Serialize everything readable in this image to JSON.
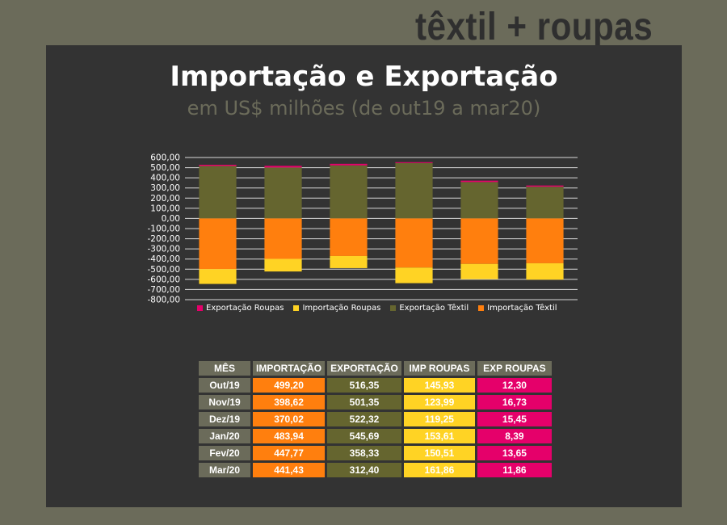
{
  "brand": "têxtil + roupas",
  "title": "Importação e Exportação",
  "subtitle": "em US$ milhões (de out19 a mar20)",
  "colors": {
    "exp_roupas": "#e5006a",
    "imp_roupas": "#ffd324",
    "exp_textil": "#65652f",
    "imp_textil": "#ff7f0e"
  },
  "chart_data": {
    "type": "bar",
    "stacked": true,
    "categories": [
      "Out/19",
      "Nov/19",
      "Dez/19",
      "Jan/20",
      "Fev/20",
      "Mar/20"
    ],
    "series": [
      {
        "name": "Exportação Roupas",
        "values": [
          12.3,
          16.73,
          15.45,
          8.39,
          13.65,
          11.86
        ]
      },
      {
        "name": "Importação Roupas",
        "values": [
          -145.93,
          -123.99,
          -119.25,
          -153.61,
          -150.51,
          -161.86
        ]
      },
      {
        "name": "Exportação Têxtil",
        "values": [
          516.35,
          501.35,
          522.32,
          545.69,
          358.33,
          312.4
        ]
      },
      {
        "name": "Importação Têxtil",
        "values": [
          -499.2,
          -398.62,
          -370.02,
          -483.94,
          -447.77,
          -441.43
        ]
      }
    ],
    "ylim": [
      -800,
      600
    ],
    "yticks": [
      "600,00",
      "500,00",
      "400,00",
      "300,00",
      "200,00",
      "100,00",
      "0,00",
      "-100,00",
      "-200,00",
      "-300,00",
      "-400,00",
      "-500,00",
      "-600,00",
      "-700,00",
      "-800,00"
    ],
    "grid": true,
    "legend": "bottom"
  },
  "table": {
    "headers": [
      "MÊS",
      "IMPORTAÇÃO",
      "EXPORTAÇÃO",
      "IMP ROUPAS",
      "EXP ROUPAS"
    ],
    "rows": [
      [
        "Out/19",
        "499,20",
        "516,35",
        "145,93",
        "12,30"
      ],
      [
        "Nov/19",
        "398,62",
        "501,35",
        "123,99",
        "16,73"
      ],
      [
        "Dez/19",
        "370,02",
        "522,32",
        "119,25",
        "15,45"
      ],
      [
        "Jan/20",
        "483,94",
        "545,69",
        "153,61",
        "8,39"
      ],
      [
        "Fev/20",
        "447,77",
        "358,33",
        "150,51",
        "13,65"
      ],
      [
        "Mar/20",
        "441,43",
        "312,40",
        "161,86",
        "11,86"
      ]
    ]
  }
}
